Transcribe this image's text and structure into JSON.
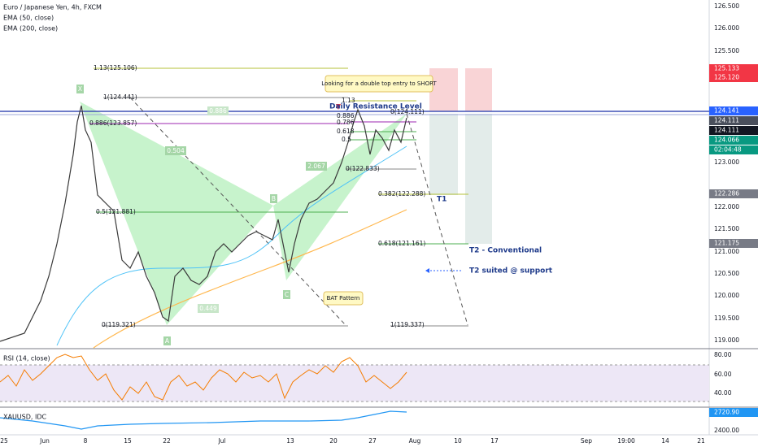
{
  "header": {
    "symbol": "Euro / Japanese Yen, 4h, FXCM",
    "indicators": [
      "EMA (50, close)",
      "EMA (200, close)"
    ]
  },
  "price_axis": [
    "126.500",
    "126.000",
    "125.500",
    "123.000",
    "122.000",
    "121.500",
    "121.000",
    "120.500",
    "120.000",
    "119.500",
    "119.000"
  ],
  "price_badges": [
    "125.133",
    "125.120",
    "124.141",
    "124.111",
    "124.111",
    "124.066",
    "02:04:48",
    "122.286",
    "121.175"
  ],
  "fib_labels": [
    "1.13(125.106)",
    "1(124.441)",
    "0.886(123.857)",
    "0.5(121.881)",
    "0(119.321)",
    "0(124.111)",
    "0.886",
    "0.786",
    "0.618",
    "0.5",
    "1.13",
    "0(122.833)",
    "0.382(122.288)",
    "0.618(121.161)",
    "1(119.337)"
  ],
  "pattern_labels": [
    "X",
    "A",
    "B",
    "C",
    "0.886",
    "0.504",
    "2.067",
    "0.449"
  ],
  "annotations": {
    "callout": "Looking for a double top entry to SHORT",
    "resistance": "Daily Resistance Level",
    "t1": "T1",
    "t2": "T2 - Conventional",
    "t2_support": "T2 suited @ support",
    "bat": "BAT Pattern"
  },
  "time_axis": [
    "25",
    "Jun",
    "8",
    "15",
    "22",
    "Jul",
    "13",
    "20",
    "27",
    "Aug",
    "10",
    "17",
    "Sep",
    "19:00",
    "14",
    "21"
  ],
  "rsi": {
    "title": "RSI (14, close)",
    "axis": [
      "80.00",
      "60.00",
      "40.00"
    ]
  },
  "xau": {
    "title": "XAUUSD, IDC",
    "badge": "2720.90",
    "axis": [
      "2400.00"
    ]
  }
}
